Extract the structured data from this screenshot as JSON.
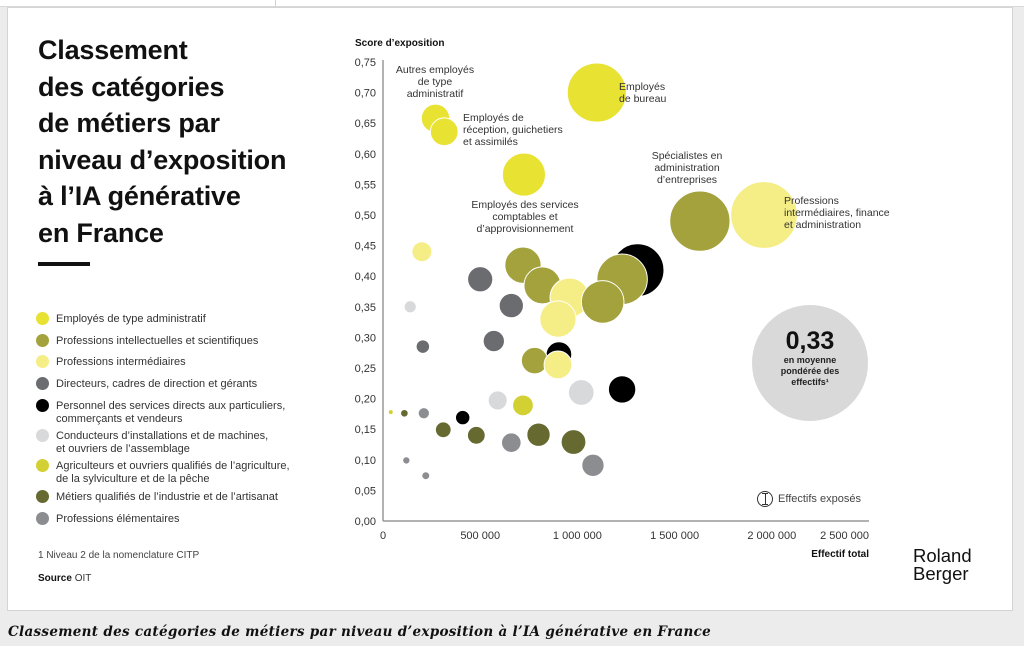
{
  "page": {
    "title": "Classement\ndes catégories\nde métiers par\nniveau d’exposition\nà l’IA générative\nen France",
    "caption": "Classement des catégories de métiers par niveau d’exposition à l’IA générative en France",
    "footnote": "1  Niveau 2 de la nomenclature CITP",
    "source_label": "Source",
    "source_value": "OIT",
    "logo": "Roland\nBerger",
    "average": {
      "value": "0,33",
      "label": "en moyenne\npondérée des\neffectifs¹"
    },
    "size_key_label": "Effectifs exposés"
  },
  "legend": [
    {
      "id": "admin",
      "label": "Employés de type administratif",
      "color": "#e8e233"
    },
    {
      "id": "intel",
      "label": "Professions intellectuelles et scientifiques",
      "color": "#a3a23d"
    },
    {
      "id": "inter",
      "label": "Professions intermédiaires",
      "color": "#f5ee86"
    },
    {
      "id": "dir",
      "label": "Directeurs, cadres de direction et gérants",
      "color": "#6b6c70"
    },
    {
      "id": "serv",
      "label": "Personnel des services directs aux particuliers,\ncommerçants et vendeurs",
      "color": "#000000"
    },
    {
      "id": "cond",
      "label": "Conducteurs d’installations et de machines,\net ouvriers de l’assemblage",
      "color": "#d8d9db"
    },
    {
      "id": "agri",
      "label": "Agriculteurs et ouvriers qualifiés de l’agriculture,\nde la sylviculture et de la pêche",
      "color": "#d3d033"
    },
    {
      "id": "indus",
      "label": "Métiers qualifiés de l’industrie et de l’artisanat",
      "color": "#666a30"
    },
    {
      "id": "elem",
      "label": "Professions élémentaires",
      "color": "#8c8d90"
    }
  ],
  "chart_data": {
    "type": "scatter",
    "subtype": "bubble",
    "title": "Classement des catégories de métiers par niveau d’exposition à l’IA générative en France",
    "xlabel": "Effectif total",
    "ylabel": "Score d’exposition",
    "xlim": [
      0,
      2500000
    ],
    "ylim": [
      0,
      0.75
    ],
    "xticks": [
      0,
      500000,
      1000000,
      1500000,
      2000000,
      2500000
    ],
    "xtick_labels": [
      "0",
      "500 000",
      "1 000 000",
      "1 500 000",
      "2 000 000",
      "2 500 000"
    ],
    "yticks": [
      0,
      0.05,
      0.1,
      0.15,
      0.2,
      0.25,
      0.3,
      0.35,
      0.4,
      0.45,
      0.5,
      0.55,
      0.6,
      0.65,
      0.7,
      0.75
    ],
    "ytick_labels": [
      "0,00",
      "0,05",
      "0,10",
      "0,15",
      "0,20",
      "0,25",
      "0,30",
      "0,35",
      "0,40",
      "0,45",
      "0,50",
      "0,55",
      "0,60",
      "0,65",
      "0,70",
      "0,75"
    ],
    "size_meaning": "Effectifs exposés",
    "grid": false,
    "legend_position": "left",
    "points": [
      {
        "cat": "admin",
        "x": 1100000,
        "y": 0.7,
        "size": 770000,
        "label": "Employés\nde bureau"
      },
      {
        "cat": "admin",
        "x": 270000,
        "y": 0.658,
        "size": 178000,
        "label": "Autres employés\nde type\nadministratif"
      },
      {
        "cat": "admin",
        "x": 315000,
        "y": 0.636,
        "size": 170000,
        "label": "Employés de\nréception, guichetiers\net assimilés"
      },
      {
        "cat": "admin",
        "x": 725000,
        "y": 0.566,
        "size": 410000,
        "label": "Employés des services\ncomptables et\nd’approvisionnement"
      },
      {
        "cat": "intel",
        "x": 1630000,
        "y": 0.49,
        "size": 800000,
        "label": "Spécialistes en\nadministration\nd’entreprises"
      },
      {
        "cat": "inter",
        "x": 1960000,
        "y": 0.5,
        "size": 980000,
        "label": "Professions\nintermédiaires, finance\net administration"
      },
      {
        "cat": "inter",
        "x": 200000,
        "y": 0.44,
        "size": 88000
      },
      {
        "cat": "intel",
        "x": 720000,
        "y": 0.418,
        "size": 290000
      },
      {
        "cat": "intel",
        "x": 820000,
        "y": 0.385,
        "size": 300000
      },
      {
        "cat": "inter",
        "x": 960000,
        "y": 0.365,
        "size": 340000
      },
      {
        "cat": "inter",
        "x": 900000,
        "y": 0.33,
        "size": 290000
      },
      {
        "cat": "serv",
        "x": 1310000,
        "y": 0.41,
        "size": 610000
      },
      {
        "cat": "intel",
        "x": 1230000,
        "y": 0.395,
        "size": 560000
      },
      {
        "cat": "intel",
        "x": 1130000,
        "y": 0.358,
        "size": 400000
      },
      {
        "cat": "dir",
        "x": 500000,
        "y": 0.395,
        "size": 140000
      },
      {
        "cat": "dir",
        "x": 660000,
        "y": 0.352,
        "size": 130000
      },
      {
        "cat": "dir",
        "x": 570000,
        "y": 0.294,
        "size": 100000
      },
      {
        "cat": "dir",
        "x": 205000,
        "y": 0.285,
        "size": 40000
      },
      {
        "cat": "cond",
        "x": 140000,
        "y": 0.35,
        "size": 33000
      },
      {
        "cat": "serv",
        "x": 905000,
        "y": 0.272,
        "size": 145000
      },
      {
        "cat": "intel",
        "x": 780000,
        "y": 0.262,
        "size": 155000
      },
      {
        "cat": "inter",
        "x": 900000,
        "y": 0.255,
        "size": 170000
      },
      {
        "cat": "serv",
        "x": 1230000,
        "y": 0.215,
        "size": 165000
      },
      {
        "cat": "cond",
        "x": 1020000,
        "y": 0.21,
        "size": 145000
      },
      {
        "cat": "cond",
        "x": 590000,
        "y": 0.197,
        "size": 80000
      },
      {
        "cat": "agri",
        "x": 720000,
        "y": 0.189,
        "size": 95000
      },
      {
        "cat": "agri",
        "x": 40000,
        "y": 0.178,
        "size": 5000
      },
      {
        "cat": "indus",
        "x": 110000,
        "y": 0.176,
        "size": 13000
      },
      {
        "cat": "elem",
        "x": 210000,
        "y": 0.176,
        "size": 28000
      },
      {
        "cat": "serv",
        "x": 410000,
        "y": 0.169,
        "size": 46000
      },
      {
        "cat": "indus",
        "x": 310000,
        "y": 0.149,
        "size": 55000
      },
      {
        "cat": "indus",
        "x": 480000,
        "y": 0.14,
        "size": 70000
      },
      {
        "cat": "elem",
        "x": 660000,
        "y": 0.128,
        "size": 85000
      },
      {
        "cat": "indus",
        "x": 800000,
        "y": 0.141,
        "size": 120000
      },
      {
        "cat": "indus",
        "x": 980000,
        "y": 0.129,
        "size": 135000
      },
      {
        "cat": "elem",
        "x": 1080000,
        "y": 0.091,
        "size": 110000
      },
      {
        "cat": "elem",
        "x": 120000,
        "y": 0.099,
        "size": 12000
      },
      {
        "cat": "elem",
        "x": 220000,
        "y": 0.074,
        "size": 14000
      }
    ]
  }
}
